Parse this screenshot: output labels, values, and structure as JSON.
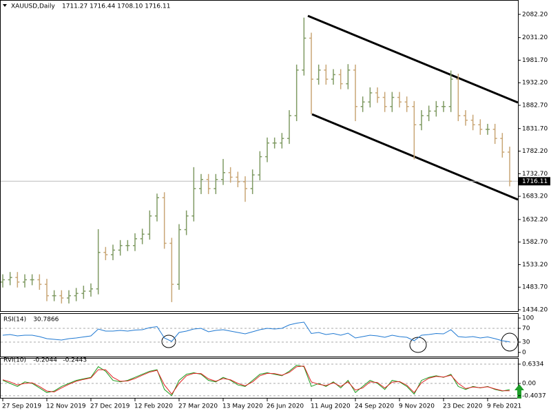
{
  "header": {
    "symbol": "XAUUSD,Daily",
    "quote": "1711.27 1716.44 1708.10 1716.11"
  },
  "chart_data": [
    {
      "type": "ohlc",
      "up_color": "#7f9a63",
      "down_color": "#c9a675",
      "categories": [
        "27 Sep 2019",
        null,
        null,
        null,
        null,
        null,
        "12 Nov 2019",
        null,
        null,
        null,
        null,
        null,
        "27 Dec 2019",
        null,
        null,
        null,
        null,
        null,
        "12 Feb 2020",
        null,
        null,
        null,
        null,
        null,
        "27 Mar 2020",
        null,
        null,
        null,
        null,
        null,
        "13 May 2020",
        null,
        null,
        null,
        null,
        null,
        "26 Jun 2020",
        null,
        null,
        null,
        null,
        null,
        "11 Aug 2020",
        null,
        null,
        null,
        null,
        null,
        "24 Sep 2020",
        null,
        null,
        null,
        null,
        null,
        "9 Nov 2020",
        null,
        null,
        null,
        null,
        null,
        "23 Dec 2020",
        null,
        null,
        null,
        null,
        null,
        "9 Feb 2021",
        null,
        null,
        null
      ],
      "open": [
        1495,
        1500,
        1505,
        1495,
        1500,
        1500,
        1490,
        1465,
        1465,
        1460,
        1465,
        1470,
        1475,
        1480,
        1560,
        1555,
        1565,
        1575,
        1575,
        1590,
        1600,
        1640,
        1680,
        1580,
        1490,
        1610,
        1640,
        1700,
        1720,
        1700,
        1720,
        1735,
        1725,
        1715,
        1700,
        1730,
        1770,
        1800,
        1800,
        1810,
        1860,
        1960,
        2030,
        1940,
        1960,
        1940,
        1950,
        1930,
        1960,
        1880,
        1890,
        1910,
        1900,
        1880,
        1900,
        1890,
        1880,
        1840,
        1860,
        1870,
        1880,
        1880,
        1940,
        1860,
        1850,
        1840,
        1830,
        1830,
        1810,
        1780
      ],
      "high": [
        1512,
        1517,
        1517,
        1512,
        1512,
        1512,
        1502,
        1477,
        1477,
        1477,
        1482,
        1487,
        1492,
        1611,
        1572,
        1577,
        1587,
        1587,
        1602,
        1612,
        1652,
        1689,
        1692,
        1592,
        1622,
        1652,
        1747,
        1732,
        1732,
        1732,
        1765,
        1747,
        1737,
        1727,
        1742,
        1782,
        1812,
        1812,
        1822,
        1872,
        1972,
        2075,
        2042,
        1972,
        1972,
        1962,
        1962,
        1973,
        1972,
        1902,
        1922,
        1922,
        1912,
        1912,
        1912,
        1902,
        1892,
        1872,
        1882,
        1892,
        1892,
        1959,
        1952,
        1872,
        1862,
        1852,
        1842,
        1842,
        1822,
        1792
      ],
      "low": [
        1483,
        1488,
        1483,
        1483,
        1488,
        1478,
        1453,
        1453,
        1448,
        1448,
        1453,
        1458,
        1463,
        1468,
        1543,
        1543,
        1553,
        1563,
        1563,
        1578,
        1588,
        1628,
        1568,
        1451,
        1478,
        1598,
        1628,
        1688,
        1688,
        1688,
        1708,
        1713,
        1703,
        1671,
        1688,
        1718,
        1758,
        1788,
        1788,
        1798,
        1848,
        1948,
        1863,
        1928,
        1928,
        1928,
        1918,
        1918,
        1848,
        1868,
        1878,
        1888,
        1868,
        1868,
        1878,
        1868,
        1764,
        1828,
        1848,
        1858,
        1868,
        1868,
        1848,
        1838,
        1828,
        1818,
        1818,
        1798,
        1768,
        1705
      ],
      "close": [
        1500,
        1505,
        1495,
        1500,
        1500,
        1490,
        1465,
        1465,
        1460,
        1465,
        1470,
        1475,
        1480,
        1560,
        1555,
        1565,
        1575,
        1575,
        1590,
        1600,
        1640,
        1680,
        1580,
        1490,
        1610,
        1640,
        1700,
        1720,
        1700,
        1720,
        1735,
        1725,
        1715,
        1700,
        1730,
        1770,
        1800,
        1800,
        1810,
        1860,
        1960,
        2030,
        1940,
        1960,
        1940,
        1950,
        1930,
        1960,
        1880,
        1890,
        1910,
        1900,
        1880,
        1900,
        1890,
        1880,
        1840,
        1860,
        1870,
        1880,
        1880,
        1940,
        1860,
        1850,
        1840,
        1830,
        1830,
        1810,
        1780,
        1716.11
      ],
      "ylim": [
        1431.2,
        2113.7
      ],
      "yticks": [
        {
          "value": 2082.2,
          "label": "2082.20"
        },
        {
          "value": 2031.2,
          "label": "2031.20"
        },
        {
          "value": 1981.7,
          "label": "1981.70"
        },
        {
          "value": 1932.2,
          "label": "1932.20"
        },
        {
          "value": 1882.7,
          "label": "1882.70"
        },
        {
          "value": 1831.7,
          "label": "1831.70"
        },
        {
          "value": 1782.2,
          "label": "1782.20"
        },
        {
          "value": 1732.7,
          "label": "1732.70"
        },
        {
          "value": 1683.2,
          "label": "1683.20"
        },
        {
          "value": 1632.2,
          "label": "1632.20"
        },
        {
          "value": 1582.7,
          "label": "1582.70"
        },
        {
          "value": 1533.2,
          "label": "1533.20"
        },
        {
          "value": 1483.7,
          "label": "1483.70"
        },
        {
          "value": 1434.2,
          "label": "1434.20"
        }
      ]
    },
    {
      "type": "line",
      "title": "RSI(14)",
      "color": "#1e78d2",
      "values": [
        50,
        52,
        48,
        50,
        50,
        46,
        40,
        38,
        36,
        40,
        42,
        45,
        48,
        68,
        62,
        62,
        64,
        62,
        65,
        66,
        72,
        75,
        42,
        32,
        58,
        62,
        68,
        70,
        60,
        64,
        66,
        62,
        58,
        54,
        60,
        66,
        70,
        68,
        70,
        80,
        85,
        88,
        55,
        58,
        52,
        55,
        50,
        56,
        42,
        46,
        50,
        48,
        44,
        50,
        46,
        44,
        34,
        50,
        52,
        55,
        54,
        66,
        46,
        44,
        46,
        42,
        45,
        40,
        34,
        30.7866
      ],
      "ylim": [
        0,
        100
      ],
      "yticks": [
        0,
        30,
        70,
        100
      ]
    },
    {
      "type": "line",
      "title": "RVI(10)",
      "series": [
        {
          "color": "#1a9a1a",
          "values": [
            0.1,
            0.0,
            -0.1,
            0.05,
            0.0,
            -0.15,
            -0.3,
            -0.25,
            -0.1,
            0.0,
            0.1,
            0.15,
            0.2,
            0.55,
            0.4,
            0.1,
            0.05,
            0.1,
            0.2,
            0.3,
            0.4,
            0.45,
            -0.2,
            -0.4,
            0.1,
            0.3,
            0.35,
            0.3,
            0.1,
            0.05,
            0.2,
            0.1,
            -0.05,
            -0.1,
            0.1,
            0.3,
            0.35,
            0.3,
            0.25,
            0.4,
            0.6,
            0.55,
            -0.1,
            0.0,
            -0.1,
            0.05,
            -0.15,
            0.1,
            -0.3,
            -0.1,
            0.1,
            0.0,
            -0.2,
            0.1,
            0.05,
            -0.1,
            -0.35,
            0.1,
            0.2,
            0.25,
            0.2,
            0.3,
            -0.1,
            -0.2,
            -0.1,
            -0.15,
            -0.1,
            -0.2,
            -0.25,
            -0.2044
          ]
        },
        {
          "color": "#e02020",
          "values": [
            0.12,
            0.05,
            -0.05,
            0.0,
            0.02,
            -0.1,
            -0.25,
            -0.28,
            -0.15,
            -0.03,
            0.07,
            0.13,
            0.18,
            0.45,
            0.45,
            0.2,
            0.07,
            0.08,
            0.16,
            0.27,
            0.37,
            0.43,
            -0.05,
            -0.35,
            0.0,
            0.25,
            0.33,
            0.32,
            0.15,
            0.07,
            0.16,
            0.12,
            0.0,
            -0.08,
            0.05,
            0.25,
            0.33,
            0.32,
            0.27,
            0.36,
            0.55,
            0.57,
            0.05,
            -0.03,
            -0.07,
            0.02,
            -0.1,
            0.05,
            -0.22,
            -0.15,
            0.05,
            0.03,
            -0.15,
            0.04,
            0.06,
            -0.06,
            -0.3,
            0.02,
            0.17,
            0.23,
            0.21,
            0.27,
            0.0,
            -0.17,
            -0.12,
            -0.14,
            -0.11,
            -0.18,
            -0.24,
            -0.2443
          ]
        }
      ],
      "ylim": [
        -0.475,
        0.814
      ],
      "yticks": [
        0.6334,
        {
          "value": 0,
          "label": "0.00"
        },
        -0.4037
      ]
    }
  ]
}
